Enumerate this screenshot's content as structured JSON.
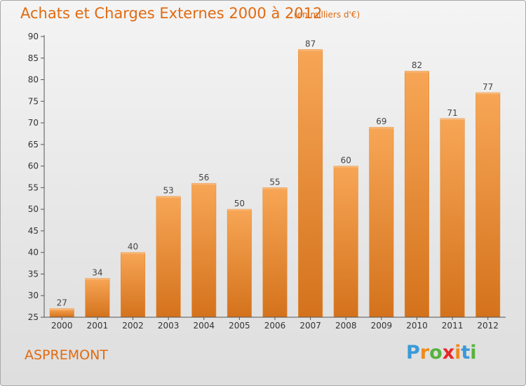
{
  "header": {
    "title": "Achats et Charges Externes 2000 à 2012",
    "subtitle": "(en milliers d'€)"
  },
  "footer": {
    "commune": "ASPREMONT",
    "logo": {
      "letters": [
        "P",
        "r",
        "o",
        "x",
        "i",
        "t",
        "i"
      ],
      "colors": [
        "#3a9ad9",
        "#f08a1c",
        "#57b33e",
        "#e8262a",
        "#f08a1c",
        "#3a9ad9",
        "#57b33e"
      ]
    }
  },
  "colors": {
    "bar": "#f2923a",
    "bar_light": "#f7a656",
    "bar_dark": "#d4721c",
    "title": "#e06a10"
  },
  "chart_data": {
    "type": "bar",
    "title": "Achats et Charges Externes 2000 à 2012",
    "subtitle": "(en milliers d'€)",
    "categories": [
      "2000",
      "2001",
      "2002",
      "2003",
      "2004",
      "2005",
      "2006",
      "2007",
      "2008",
      "2009",
      "2010",
      "2011",
      "2012"
    ],
    "values": [
      27,
      34,
      40,
      53,
      56,
      50,
      55,
      87,
      60,
      69,
      82,
      71,
      77
    ],
    "ylim": [
      25,
      90
    ],
    "yticks": [
      25,
      30,
      35,
      40,
      45,
      50,
      55,
      60,
      65,
      70,
      75,
      80,
      85,
      90
    ],
    "grid": false,
    "data_labels": true
  }
}
